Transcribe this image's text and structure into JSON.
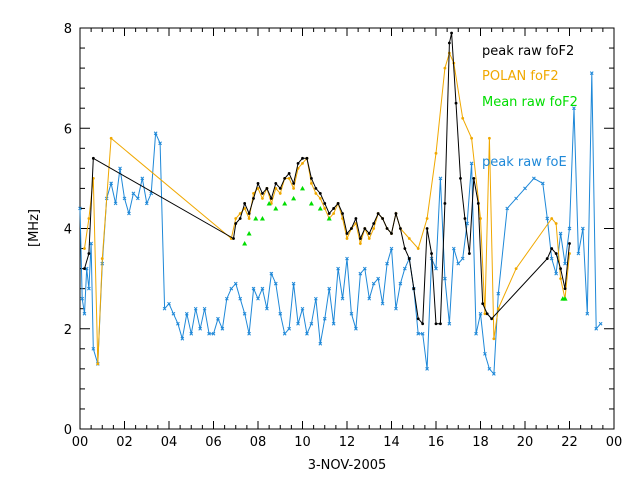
{
  "chart_data": {
    "type": "line",
    "title": "",
    "xlabel": "3-NOV-2005",
    "ylabel": "[MHz]",
    "xlim": [
      0,
      24
    ],
    "ylim": [
      0,
      8
    ],
    "x_tick_labels": [
      "00",
      "02",
      "04",
      "06",
      "08",
      "10",
      "12",
      "14",
      "16",
      "18",
      "20",
      "22",
      "00"
    ],
    "y_tick_labels": [
      "0",
      "2",
      "4",
      "6",
      "8"
    ],
    "grid": false,
    "legend_position": "top-right",
    "series": [
      {
        "name": "peak raw foF2",
        "color": "#000000",
        "marker": "dot",
        "points": [
          [
            0.2,
            3.2
          ],
          [
            0.4,
            3.5
          ],
          [
            0.6,
            5.4
          ],
          [
            6.9,
            3.8
          ],
          [
            7.0,
            4.1
          ],
          [
            7.2,
            4.2
          ],
          [
            7.4,
            4.5
          ],
          [
            7.6,
            4.3
          ],
          [
            7.8,
            4.6
          ],
          [
            8.0,
            4.9
          ],
          [
            8.2,
            4.7
          ],
          [
            8.4,
            4.8
          ],
          [
            8.6,
            4.6
          ],
          [
            8.8,
            4.9
          ],
          [
            9.0,
            4.8
          ],
          [
            9.2,
            5.0
          ],
          [
            9.4,
            5.1
          ],
          [
            9.6,
            4.9
          ],
          [
            9.8,
            5.3
          ],
          [
            10.0,
            5.4
          ],
          [
            10.2,
            5.4
          ],
          [
            10.4,
            5.0
          ],
          [
            10.6,
            4.8
          ],
          [
            10.8,
            4.7
          ],
          [
            11.0,
            4.5
          ],
          [
            11.2,
            4.3
          ],
          [
            11.4,
            4.4
          ],
          [
            11.6,
            4.5
          ],
          [
            11.8,
            4.3
          ],
          [
            12.0,
            3.9
          ],
          [
            12.2,
            4.0
          ],
          [
            12.4,
            4.2
          ],
          [
            12.6,
            3.8
          ],
          [
            12.8,
            4.0
          ],
          [
            13.0,
            3.9
          ],
          [
            13.2,
            4.1
          ],
          [
            13.4,
            4.3
          ],
          [
            13.6,
            4.2
          ],
          [
            13.8,
            4.0
          ],
          [
            14.0,
            3.9
          ],
          [
            14.2,
            4.3
          ],
          [
            14.4,
            4.0
          ],
          [
            14.6,
            3.6
          ],
          [
            14.8,
            3.4
          ],
          [
            15.0,
            2.8
          ],
          [
            15.2,
            2.2
          ],
          [
            15.4,
            2.1
          ],
          [
            15.6,
            4.0
          ],
          [
            15.8,
            3.5
          ],
          [
            16.0,
            2.1
          ],
          [
            16.2,
            2.1
          ],
          [
            16.4,
            4.5
          ],
          [
            16.6,
            7.7
          ],
          [
            16.7,
            7.9
          ],
          [
            16.9,
            6.5
          ],
          [
            17.1,
            5.0
          ],
          [
            17.3,
            4.2
          ],
          [
            17.5,
            3.5
          ],
          [
            17.7,
            5.0
          ],
          [
            17.9,
            4.5
          ],
          [
            18.1,
            2.5
          ],
          [
            18.3,
            2.3
          ],
          [
            18.5,
            2.2
          ],
          [
            21.0,
            3.4
          ],
          [
            21.2,
            3.6
          ],
          [
            21.4,
            3.5
          ],
          [
            21.6,
            3.2
          ],
          [
            21.8,
            2.8
          ],
          [
            22.0,
            3.7
          ]
        ]
      },
      {
        "name": "POLAN foF2",
        "color": "#f0a800",
        "marker": "dot",
        "points": [
          [
            0.2,
            3.6
          ],
          [
            0.4,
            4.2
          ],
          [
            0.6,
            5.0
          ],
          [
            0.8,
            1.3
          ],
          [
            1.0,
            3.4
          ],
          [
            1.4,
            5.8
          ],
          [
            6.8,
            3.8
          ],
          [
            7.0,
            4.2
          ],
          [
            7.2,
            4.3
          ],
          [
            7.4,
            4.4
          ],
          [
            7.6,
            4.2
          ],
          [
            7.8,
            4.7
          ],
          [
            8.0,
            4.8
          ],
          [
            8.2,
            4.6
          ],
          [
            8.4,
            4.8
          ],
          [
            8.6,
            4.5
          ],
          [
            8.8,
            4.8
          ],
          [
            9.0,
            4.7
          ],
          [
            9.2,
            5.0
          ],
          [
            9.4,
            5.0
          ],
          [
            9.6,
            4.8
          ],
          [
            9.8,
            5.2
          ],
          [
            10.0,
            5.3
          ],
          [
            10.2,
            5.4
          ],
          [
            10.4,
            4.9
          ],
          [
            10.6,
            4.7
          ],
          [
            10.8,
            4.6
          ],
          [
            11.0,
            4.4
          ],
          [
            11.2,
            4.2
          ],
          [
            11.4,
            4.3
          ],
          [
            11.6,
            4.5
          ],
          [
            11.8,
            4.2
          ],
          [
            12.0,
            3.8
          ],
          [
            12.2,
            4.0
          ],
          [
            12.4,
            4.1
          ],
          [
            12.6,
            3.7
          ],
          [
            12.8,
            4.0
          ],
          [
            13.0,
            3.8
          ],
          [
            13.2,
            4.0
          ],
          [
            13.4,
            4.3
          ],
          [
            13.6,
            4.2
          ],
          [
            13.8,
            4.0
          ],
          [
            14.0,
            3.9
          ],
          [
            14.2,
            4.3
          ],
          [
            14.4,
            4.0
          ],
          [
            14.8,
            3.8
          ],
          [
            15.2,
            3.6
          ],
          [
            15.6,
            4.2
          ],
          [
            16.0,
            5.5
          ],
          [
            16.4,
            7.2
          ],
          [
            16.6,
            7.5
          ],
          [
            16.8,
            7.3
          ],
          [
            17.2,
            6.2
          ],
          [
            17.6,
            5.8
          ],
          [
            18.0,
            4.2
          ],
          [
            18.2,
            2.3
          ],
          [
            18.4,
            5.8
          ],
          [
            18.6,
            1.8
          ],
          [
            18.8,
            2.4
          ],
          [
            19.6,
            3.2
          ],
          [
            21.2,
            4.2
          ],
          [
            21.4,
            4.1
          ],
          [
            21.6,
            3.0
          ],
          [
            21.8,
            2.6
          ],
          [
            22.0,
            3.5
          ]
        ]
      },
      {
        "name": "Mean raw foF2",
        "color": "#00dd00",
        "marker": "triangle",
        "points": [
          [
            7.4,
            3.7
          ],
          [
            7.6,
            3.9
          ],
          [
            7.9,
            4.2
          ],
          [
            8.2,
            4.2
          ],
          [
            8.5,
            4.5
          ],
          [
            8.8,
            4.4
          ],
          [
            9.2,
            4.5
          ],
          [
            9.6,
            4.6
          ],
          [
            10.0,
            4.8
          ],
          [
            10.4,
            4.5
          ],
          [
            10.8,
            4.4
          ],
          [
            11.2,
            4.2
          ],
          [
            21.7,
            2.6
          ],
          [
            21.8,
            2.6
          ]
        ]
      },
      {
        "name": "peak raw foE",
        "color": "#1e88d8",
        "marker": "x",
        "points": [
          [
            0.0,
            4.4
          ],
          [
            0.1,
            2.6
          ],
          [
            0.2,
            2.3
          ],
          [
            0.3,
            3.2
          ],
          [
            0.4,
            2.8
          ],
          [
            0.5,
            3.7
          ],
          [
            0.6,
            1.6
          ],
          [
            0.8,
            1.3
          ],
          [
            1.0,
            3.3
          ],
          [
            1.2,
            4.6
          ],
          [
            1.4,
            4.9
          ],
          [
            1.6,
            4.5
          ],
          [
            1.8,
            5.2
          ],
          [
            2.0,
            4.6
          ],
          [
            2.2,
            4.3
          ],
          [
            2.4,
            4.7
          ],
          [
            2.6,
            4.6
          ],
          [
            2.8,
            5.0
          ],
          [
            3.0,
            4.5
          ],
          [
            3.2,
            4.7
          ],
          [
            3.4,
            5.9
          ],
          [
            3.6,
            5.7
          ],
          [
            3.8,
            2.4
          ],
          [
            4.0,
            2.5
          ],
          [
            4.2,
            2.3
          ],
          [
            4.4,
            2.1
          ],
          [
            4.6,
            1.8
          ],
          [
            4.8,
            2.3
          ],
          [
            5.0,
            1.9
          ],
          [
            5.2,
            2.4
          ],
          [
            5.4,
            2.0
          ],
          [
            5.6,
            2.4
          ],
          [
            5.8,
            1.9
          ],
          [
            6.0,
            1.9
          ],
          [
            6.2,
            2.2
          ],
          [
            6.4,
            2.0
          ],
          [
            6.6,
            2.6
          ],
          [
            6.8,
            2.8
          ],
          [
            7.0,
            2.9
          ],
          [
            7.2,
            2.6
          ],
          [
            7.4,
            2.3
          ],
          [
            7.6,
            1.9
          ],
          [
            7.8,
            2.8
          ],
          [
            8.0,
            2.6
          ],
          [
            8.2,
            2.8
          ],
          [
            8.4,
            2.4
          ],
          [
            8.6,
            3.1
          ],
          [
            8.8,
            2.9
          ],
          [
            9.0,
            2.3
          ],
          [
            9.2,
            1.9
          ],
          [
            9.4,
            2.0
          ],
          [
            9.6,
            2.9
          ],
          [
            9.8,
            2.1
          ],
          [
            10.0,
            2.4
          ],
          [
            10.2,
            1.9
          ],
          [
            10.4,
            2.1
          ],
          [
            10.6,
            2.6
          ],
          [
            10.8,
            1.7
          ],
          [
            11.0,
            2.2
          ],
          [
            11.2,
            2.8
          ],
          [
            11.4,
            2.1
          ],
          [
            11.6,
            3.2
          ],
          [
            11.8,
            2.6
          ],
          [
            12.0,
            3.4
          ],
          [
            12.2,
            2.3
          ],
          [
            12.4,
            2.0
          ],
          [
            12.6,
            3.1
          ],
          [
            12.8,
            3.2
          ],
          [
            13.0,
            2.6
          ],
          [
            13.2,
            2.9
          ],
          [
            13.4,
            3.0
          ],
          [
            13.6,
            2.5
          ],
          [
            13.8,
            3.3
          ],
          [
            14.0,
            3.6
          ],
          [
            14.2,
            2.4
          ],
          [
            14.4,
            2.9
          ],
          [
            14.6,
            3.2
          ],
          [
            14.8,
            3.4
          ],
          [
            15.0,
            2.8
          ],
          [
            15.2,
            1.9
          ],
          [
            15.4,
            1.9
          ],
          [
            15.6,
            1.2
          ],
          [
            15.8,
            3.4
          ],
          [
            16.0,
            3.2
          ],
          [
            16.2,
            5.0
          ],
          [
            16.4,
            3.0
          ],
          [
            16.6,
            2.1
          ],
          [
            16.8,
            3.6
          ],
          [
            17.0,
            3.3
          ],
          [
            17.2,
            3.4
          ],
          [
            17.4,
            4.1
          ],
          [
            17.6,
            5.3
          ],
          [
            17.8,
            1.9
          ],
          [
            18.0,
            2.3
          ],
          [
            18.2,
            1.5
          ],
          [
            18.4,
            1.2
          ],
          [
            18.6,
            1.1
          ],
          [
            18.8,
            2.7
          ],
          [
            19.2,
            4.4
          ],
          [
            19.6,
            4.6
          ],
          [
            20.0,
            4.8
          ],
          [
            20.4,
            5.0
          ],
          [
            20.8,
            4.9
          ],
          [
            21.0,
            4.2
          ],
          [
            21.2,
            3.4
          ],
          [
            21.4,
            3.1
          ],
          [
            21.6,
            3.9
          ],
          [
            21.8,
            3.3
          ],
          [
            22.0,
            4.0
          ],
          [
            22.2,
            6.4
          ],
          [
            22.4,
            3.5
          ],
          [
            22.6,
            4.0
          ],
          [
            22.8,
            2.3
          ],
          [
            23.0,
            7.1
          ],
          [
            23.2,
            2.0
          ],
          [
            23.4,
            2.1
          ]
        ]
      }
    ]
  }
}
